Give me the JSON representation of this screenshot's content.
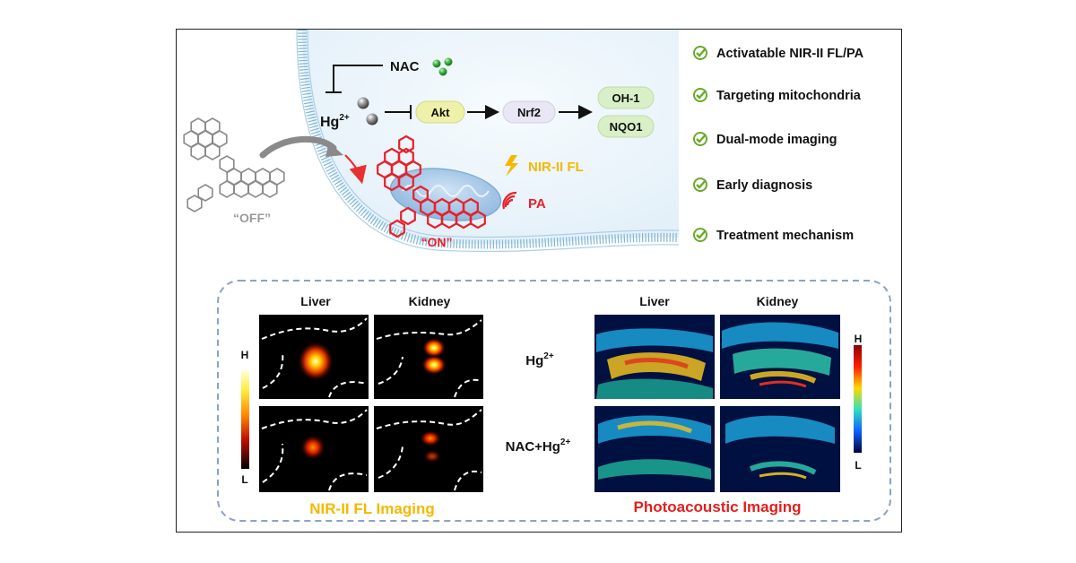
{
  "pathway": {
    "nac": "NAC",
    "hg": "Hg",
    "hg_charge": "2+",
    "akt": "Akt",
    "nrf2": "Nrf2",
    "oh1": "OH-1",
    "nqo1": "NQO1"
  },
  "probe": {
    "off_label": "“OFF”",
    "on_label": "“ON”",
    "fl_signal": "NIR-II FL",
    "pa_signal": "PA"
  },
  "features": [
    "Activatable NIR-II FL/PA",
    "Targeting mitochondria",
    "Dual-mode imaging",
    "Early diagnosis",
    "Treatment mechanism"
  ],
  "imaging": {
    "fl_liver": "Liver",
    "fl_kidney": "Kidney",
    "pa_liver": "Liver",
    "pa_kidney": "Kidney",
    "row1_hg": "Hg",
    "row1_charge": "2+",
    "row2_nac_hg": "NAC+Hg",
    "row2_charge": "2+",
    "fl_scale_high": "H",
    "fl_scale_low": "L",
    "pa_scale_high": "H",
    "pa_scale_low": "L",
    "fl_title": "NIR-II FL Imaging",
    "pa_title": "Photoacoustic Imaging"
  },
  "colors": {
    "check": "#6aaa2a",
    "fl_title": "#f5b800",
    "pa_title": "#e0201e",
    "probe_on": "#e8202a",
    "probe_off": "#9a9a9a",
    "box_fill": "#eef1a8",
    "membrane": "#7fb6d8",
    "nac_dots": "#3cb043"
  }
}
